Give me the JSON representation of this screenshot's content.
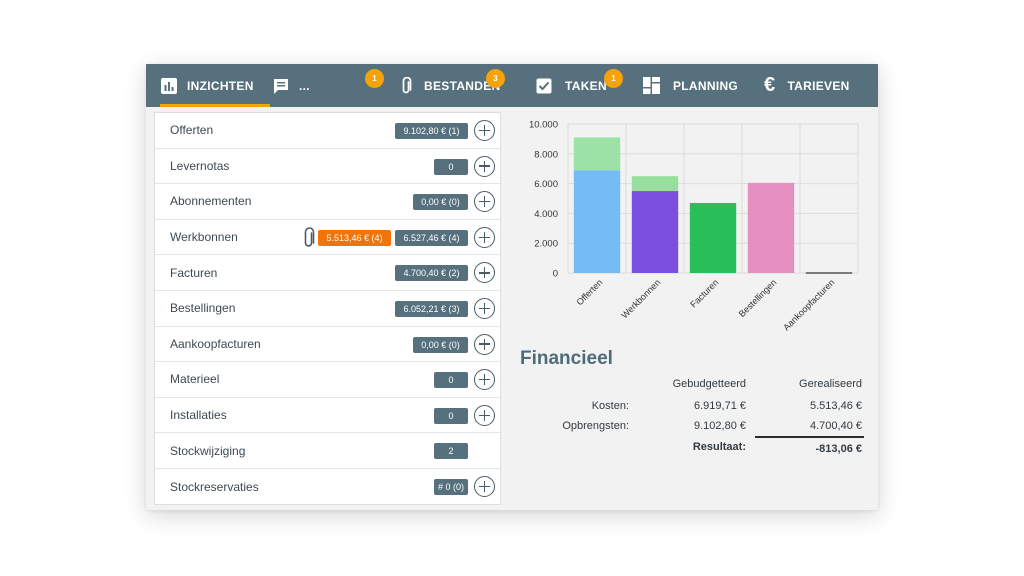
{
  "tabs": [
    {
      "label": "INZICHTEN",
      "icon": "bar-chart-icon",
      "active": true
    },
    {
      "label": "...",
      "icon": "chat-icon",
      "badge": "1"
    },
    {
      "label": "BESTANDEN",
      "icon": "paperclip-icon",
      "badge": "3"
    },
    {
      "label": "TAKEN",
      "icon": "checkbox-icon",
      "badge": "1"
    },
    {
      "label": "PLANNING",
      "icon": "grid-icon"
    },
    {
      "label": "TARIEVEN",
      "icon": "euro-icon"
    }
  ],
  "rows": [
    {
      "label": "Offerten",
      "value": "9.102,80 € (1)",
      "plus": true
    },
    {
      "label": "Levernotas",
      "value": "0",
      "plus": true
    },
    {
      "label": "Abonnementen",
      "value": "0,00 € (0)",
      "plus": true
    },
    {
      "label": "Werkbonnen",
      "value": "6.527,46 € (4)",
      "extra": "5.513,46 € (4)",
      "attachment": true,
      "plus": true
    },
    {
      "label": "Facturen",
      "value": "4.700,40 € (2)",
      "plus": true
    },
    {
      "label": "Bestellingen",
      "value": "6.052,21 € (3)",
      "plus": true
    },
    {
      "label": "Aankoopfacturen",
      "value": "0,00 € (0)",
      "plus": true
    },
    {
      "label": "Materieel",
      "value": "0",
      "plus": true
    },
    {
      "label": "Installaties",
      "value": "0",
      "plus": true
    },
    {
      "label": "Stockwijziging",
      "value": "2",
      "plus": false
    },
    {
      "label": "Stockreservaties",
      "value": "# 0 (0)",
      "plus": true
    }
  ],
  "chart_data": {
    "type": "bar",
    "categories": [
      "Offerten",
      "Werkbonnen",
      "Facturen",
      "Bestellingen",
      "Aankoopfacturen"
    ],
    "yticks": [
      "0",
      "2.000",
      "4.000",
      "6.000",
      "8.000",
      "10.000"
    ],
    "ylim": [
      0,
      10000
    ],
    "stacks": [
      {
        "category": "Offerten",
        "base": 6900,
        "base_color": "#74bcf6",
        "top": 2200,
        "top_color": "#9ce1a6"
      },
      {
        "category": "Werkbonnen",
        "base": 5500,
        "base_color": "#7b4fe0",
        "top": 1000,
        "top_color": "#96e09c"
      },
      {
        "category": "Facturen",
        "base": 4700,
        "base_color": "#29bf58",
        "top": 0,
        "top_color": ""
      },
      {
        "category": "Bestellingen",
        "base": 6050,
        "base_color": "#e590c0",
        "top": 0,
        "top_color": ""
      },
      {
        "category": "Aankoopfacturen",
        "base": 0,
        "base_color": "#555555",
        "top": 0,
        "top_color": ""
      }
    ],
    "grid": true,
    "legend": "none"
  },
  "financieel": {
    "title": "Financieel",
    "col1": "Gebudgetteerd",
    "col2": "Gerealiseerd",
    "kosten_label": "Kosten:",
    "kosten_budget": "6.919,71 €",
    "kosten_real": "5.513,46 €",
    "opbrengsten_label": "Opbrengsten:",
    "opbrengsten_budget": "9.102,80 €",
    "opbrengsten_real": "4.700,40 €",
    "resultaat_label": "Resultaat:",
    "resultaat_value": "-813,06 €"
  }
}
